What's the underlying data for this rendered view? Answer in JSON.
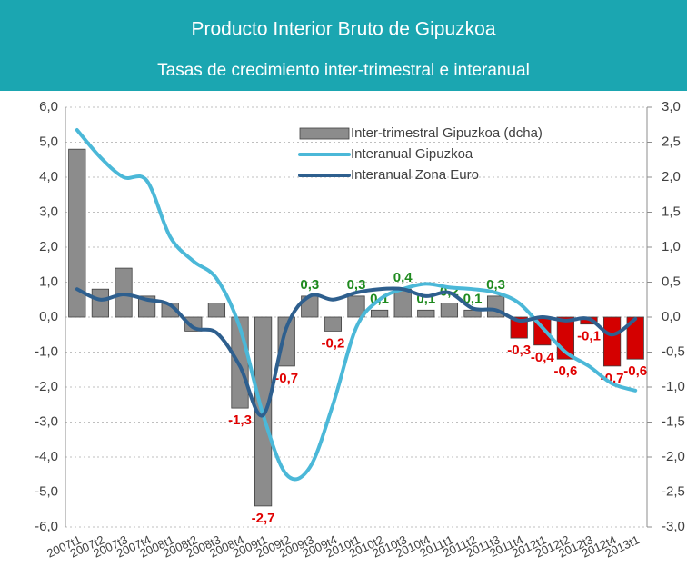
{
  "chart_data": {
    "type": "bar-line",
    "title": "Producto Interior Bruto de Gipuzkoa",
    "subtitle": "Tasas de crecimiento inter-trimestral e interanual",
    "categories": [
      "2007t1",
      "2007t2",
      "2007t3",
      "2007t4",
      "2008t1",
      "2008t2",
      "2008t3",
      "2008t4",
      "2009t1",
      "2009t2",
      "2009t3",
      "2009t4",
      "2010t1",
      "2010t2",
      "2010t3",
      "2010t4",
      "2011t1",
      "2011t2",
      "2011t3",
      "2011t4",
      "2012t1",
      "2012t2",
      "2012t3",
      "2012t4",
      "2013t1"
    ],
    "ylim": [
      -6,
      6
    ],
    "yticks": [
      {
        "value": -6,
        "label": "-6,0"
      },
      {
        "value": -5,
        "label": "-5,0"
      },
      {
        "value": -4,
        "label": "-4,0"
      },
      {
        "value": -3,
        "label": "-3,0"
      },
      {
        "value": -2,
        "label": "-2,0"
      },
      {
        "value": -1,
        "label": "-1,0"
      },
      {
        "value": 0,
        "label": "0,0"
      },
      {
        "value": 1,
        "label": "1,0"
      },
      {
        "value": 2,
        "label": "2,0"
      },
      {
        "value": 3,
        "label": "3,0"
      },
      {
        "value": 4,
        "label": "4,0"
      },
      {
        "value": 5,
        "label": "5,0"
      },
      {
        "value": 6,
        "label": "6,0"
      }
    ],
    "y2lim": [
      -3,
      3
    ],
    "y2ticks": [
      {
        "value": -3,
        "label": "-3,0"
      },
      {
        "value": -2.5,
        "label": "-2,5"
      },
      {
        "value": -2,
        "label": "-2,0"
      },
      {
        "value": -1.5,
        "label": "-1,5"
      },
      {
        "value": -1,
        "label": "-1,0"
      },
      {
        "value": -0.5,
        "label": "-0,5"
      },
      {
        "value": 0,
        "label": "0,0"
      },
      {
        "value": 0.5,
        "label": "0,5"
      },
      {
        "value": 1,
        "label": "1,0"
      },
      {
        "value": 1.5,
        "label": "1,5"
      },
      {
        "value": 2,
        "label": "2,0"
      },
      {
        "value": 2.5,
        "label": "2,5"
      },
      {
        "value": 3,
        "label": "3,0"
      }
    ],
    "grid": true,
    "legend": "top-right",
    "series": [
      {
        "name": "Inter-trimestral Gipuzkoa (dcha)",
        "type": "bar",
        "axis": "y2",
        "color": "#8c8c8c",
        "colors": [
          "#8c8c8c",
          "#8c8c8c",
          "#8c8c8c",
          "#8c8c8c",
          "#8c8c8c",
          "#8c8c8c",
          "#8c8c8c",
          "#8c8c8c",
          "#8c8c8c",
          "#8c8c8c",
          "#8c8c8c",
          "#8c8c8c",
          "#8c8c8c",
          "#8c8c8c",
          "#8c8c8c",
          "#8c8c8c",
          "#8c8c8c",
          "#8c8c8c",
          "#8c8c8c",
          "#d40000",
          "#d40000",
          "#d40000",
          "#d40000",
          "#d40000",
          "#d40000"
        ],
        "values": [
          2.4,
          0.4,
          0.7,
          0.3,
          0.2,
          -0.2,
          0.2,
          -1.3,
          -2.7,
          -0.7,
          0.3,
          -0.2,
          0.3,
          0.1,
          0.4,
          0.1,
          0.2,
          0.1,
          0.3,
          -0.3,
          -0.4,
          -0.6,
          -0.1,
          -0.7,
          -0.6
        ],
        "value_labels": [
          null,
          null,
          null,
          null,
          null,
          null,
          null,
          "-1,3",
          "-2,7",
          "-0,7",
          "0,3",
          "-0,2",
          "0,3",
          "0,1",
          "0,4",
          "0,1",
          "0,2",
          "0,1",
          "0,3",
          "-0,3",
          "-0,4",
          "-0,6",
          "-0,1",
          "-0,7",
          "-0,6"
        ]
      },
      {
        "name": "Interanual Gipuzkoa",
        "type": "line",
        "color": "#4bb8d8",
        "values": [
          5.35,
          4.57,
          4.0,
          3.9,
          2.3,
          1.6,
          1.1,
          -0.3,
          -2.8,
          -4.5,
          -4.3,
          -2.5,
          -0.3,
          0.5,
          0.8,
          0.95,
          0.85,
          0.8,
          0.7,
          0.4,
          -0.3,
          -1.0,
          -1.4,
          -1.9,
          -2.1
        ]
      },
      {
        "name": "Interanual Zona Euro",
        "type": "line",
        "color": "#2e5f8e",
        "values": [
          0.8,
          0.5,
          0.65,
          0.5,
          0.35,
          -0.3,
          -0.45,
          -1.4,
          -2.8,
          -0.3,
          0.6,
          0.5,
          0.7,
          0.8,
          0.8,
          0.6,
          0.7,
          0.25,
          0.2,
          -0.1,
          0,
          -0.1,
          -0.05,
          -0.5,
          -0.05
        ]
      }
    ]
  }
}
